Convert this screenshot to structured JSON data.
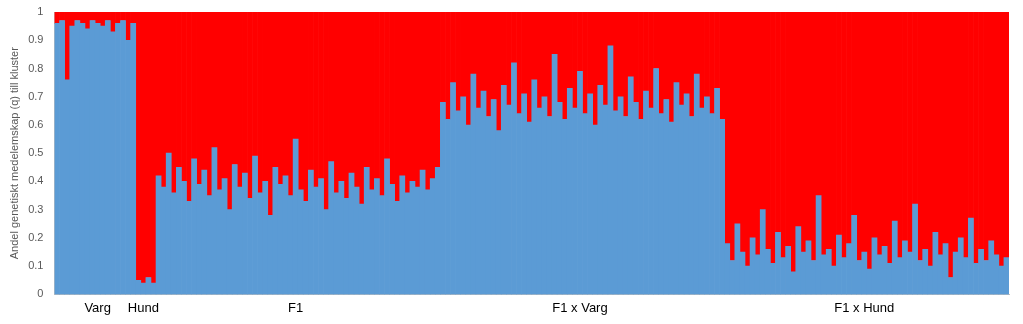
{
  "chart_data": {
    "type": "bar",
    "stacked": true,
    "grid": false,
    "y_label": "Andel genetiskt medelemskap (q) till kluster",
    "ylim": [
      0,
      1
    ],
    "yticks": [
      0,
      0.1,
      0.2,
      0.3,
      0.4,
      0.5,
      0.6,
      0.7,
      0.8,
      0.9,
      1
    ],
    "categories": [
      null,
      null,
      null,
      null,
      null,
      null,
      null,
      null,
      "Varg",
      null,
      null,
      null,
      null,
      null,
      null,
      null,
      null,
      "Hund",
      null,
      null,
      null,
      null,
      null,
      null,
      null,
      null,
      null,
      null,
      null,
      null,
      null,
      null,
      null,
      null,
      null,
      null,
      null,
      null,
      null,
      null,
      null,
      null,
      null,
      null,
      null,
      null,
      null,
      "F1",
      null,
      null,
      null,
      null,
      null,
      null,
      null,
      null,
      null,
      null,
      null,
      null,
      null,
      null,
      null,
      null,
      null,
      null,
      null,
      null,
      null,
      null,
      null,
      null,
      null,
      null,
      null,
      null,
      null,
      null,
      null,
      null,
      null,
      null,
      null,
      null,
      null,
      null,
      null,
      null,
      null,
      null,
      null,
      null,
      null,
      null,
      null,
      null,
      null,
      null,
      null,
      null,
      null,
      null,
      null,
      "F1 x Varg",
      null,
      null,
      null,
      null,
      null,
      null,
      null,
      null,
      null,
      null,
      null,
      null,
      null,
      null,
      null,
      null,
      null,
      null,
      null,
      null,
      null,
      null,
      null,
      null,
      null,
      null,
      null,
      null,
      null,
      null,
      null,
      null,
      null,
      null,
      null,
      null,
      null,
      null,
      null,
      null,
      null,
      null,
      null,
      null,
      null,
      null,
      null,
      null,
      null,
      null,
      null,
      null,
      null,
      null,
      null,
      "F1 x Hund",
      null,
      null,
      null,
      null,
      null,
      null,
      null,
      null,
      null,
      null,
      null,
      null,
      null,
      null,
      null,
      null,
      null,
      null,
      null,
      null,
      null,
      null,
      null,
      null,
      null,
      null,
      null,
      null
    ],
    "series": [
      {
        "color": "#5b9bd5",
        "values": [
          0.96,
          0.97,
          0.76,
          0.95,
          0.97,
          0.96,
          0.94,
          0.97,
          0.96,
          0.95,
          0.97,
          0.93,
          0.96,
          0.97,
          0.9,
          0.96,
          0.05,
          0.04,
          0.06,
          0.04,
          0.42,
          0.38,
          0.5,
          0.36,
          0.45,
          0.4,
          0.33,
          0.48,
          0.39,
          0.44,
          0.35,
          0.52,
          0.37,
          0.41,
          0.3,
          0.46,
          0.38,
          0.43,
          0.34,
          0.49,
          0.36,
          0.4,
          0.28,
          0.45,
          0.39,
          0.42,
          0.35,
          0.55,
          0.37,
          0.33,
          0.44,
          0.38,
          0.41,
          0.3,
          0.47,
          0.36,
          0.4,
          0.34,
          0.43,
          0.38,
          0.32,
          0.45,
          0.37,
          0.41,
          0.35,
          0.48,
          0.39,
          0.33,
          0.42,
          0.36,
          0.4,
          0.38,
          0.44,
          0.37,
          0.41,
          0.45,
          0.68,
          0.62,
          0.75,
          0.65,
          0.7,
          0.6,
          0.78,
          0.66,
          0.72,
          0.63,
          0.69,
          0.58,
          0.74,
          0.67,
          0.82,
          0.64,
          0.71,
          0.61,
          0.76,
          0.66,
          0.7,
          0.63,
          0.85,
          0.68,
          0.62,
          0.73,
          0.66,
          0.79,
          0.64,
          0.71,
          0.6,
          0.74,
          0.67,
          0.88,
          0.65,
          0.7,
          0.63,
          0.77,
          0.68,
          0.62,
          0.72,
          0.66,
          0.8,
          0.64,
          0.69,
          0.61,
          0.75,
          0.67,
          0.71,
          0.63,
          0.78,
          0.66,
          0.7,
          0.64,
          0.73,
          0.62,
          0.18,
          0.12,
          0.25,
          0.15,
          0.1,
          0.2,
          0.14,
          0.3,
          0.16,
          0.11,
          0.22,
          0.13,
          0.17,
          0.08,
          0.24,
          0.15,
          0.19,
          0.12,
          0.35,
          0.14,
          0.16,
          0.1,
          0.21,
          0.13,
          0.18,
          0.28,
          0.12,
          0.15,
          0.09,
          0.2,
          0.14,
          0.17,
          0.11,
          0.26,
          0.13,
          0.19,
          0.15,
          0.32,
          0.12,
          0.16,
          0.1,
          0.22,
          0.14,
          0.18,
          0.06,
          0.15,
          0.2,
          0.13,
          0.27,
          0.11,
          0.16,
          0.12,
          0.19,
          0.14,
          0.1,
          0.13
        ]
      },
      {
        "color": "#ff0000",
        "values": [
          0.04,
          0.03,
          0.24,
          0.05,
          0.03,
          0.04,
          0.06,
          0.03,
          0.04,
          0.05,
          0.03,
          0.07,
          0.04,
          0.03,
          0.1,
          0.04,
          0.95,
          0.96,
          0.94,
          0.96,
          0.58,
          0.62,
          0.5,
          0.64,
          0.55,
          0.6,
          0.67,
          0.52,
          0.61,
          0.56,
          0.65,
          0.48,
          0.63,
          0.59,
          0.7,
          0.54,
          0.62,
          0.57,
          0.66,
          0.51,
          0.64,
          0.6,
          0.72,
          0.55,
          0.61,
          0.58,
          0.65,
          0.45,
          0.63,
          0.67,
          0.56,
          0.62,
          0.59,
          0.7,
          0.53,
          0.64,
          0.6,
          0.66,
          0.57,
          0.62,
          0.68,
          0.55,
          0.63,
          0.59,
          0.65,
          0.52,
          0.61,
          0.67,
          0.58,
          0.64,
          0.6,
          0.62,
          0.56,
          0.63,
          0.59,
          0.55,
          0.32,
          0.38,
          0.25,
          0.35,
          0.3,
          0.4,
          0.22,
          0.34,
          0.28,
          0.37,
          0.31,
          0.42,
          0.26,
          0.33,
          0.18,
          0.36,
          0.29,
          0.39,
          0.24,
          0.34,
          0.3,
          0.37,
          0.15,
          0.32,
          0.38,
          0.27,
          0.34,
          0.21,
          0.36,
          0.29,
          0.4,
          0.26,
          0.33,
          0.12,
          0.35,
          0.3,
          0.37,
          0.23,
          0.32,
          0.38,
          0.28,
          0.34,
          0.2,
          0.36,
          0.31,
          0.39,
          0.25,
          0.33,
          0.29,
          0.37,
          0.22,
          0.34,
          0.3,
          0.36,
          0.27,
          0.38,
          0.82,
          0.88,
          0.75,
          0.85,
          0.9,
          0.8,
          0.86,
          0.7,
          0.84,
          0.89,
          0.78,
          0.87,
          0.83,
          0.92,
          0.76,
          0.85,
          0.81,
          0.88,
          0.65,
          0.86,
          0.84,
          0.9,
          0.79,
          0.87,
          0.82,
          0.72,
          0.88,
          0.85,
          0.91,
          0.8,
          0.86,
          0.83,
          0.89,
          0.74,
          0.87,
          0.81,
          0.85,
          0.68,
          0.88,
          0.84,
          0.9,
          0.78,
          0.86,
          0.82,
          0.94,
          0.85,
          0.8,
          0.87,
          0.73,
          0.89,
          0.84,
          0.88,
          0.81,
          0.86,
          0.9,
          0.87
        ]
      }
    ]
  }
}
